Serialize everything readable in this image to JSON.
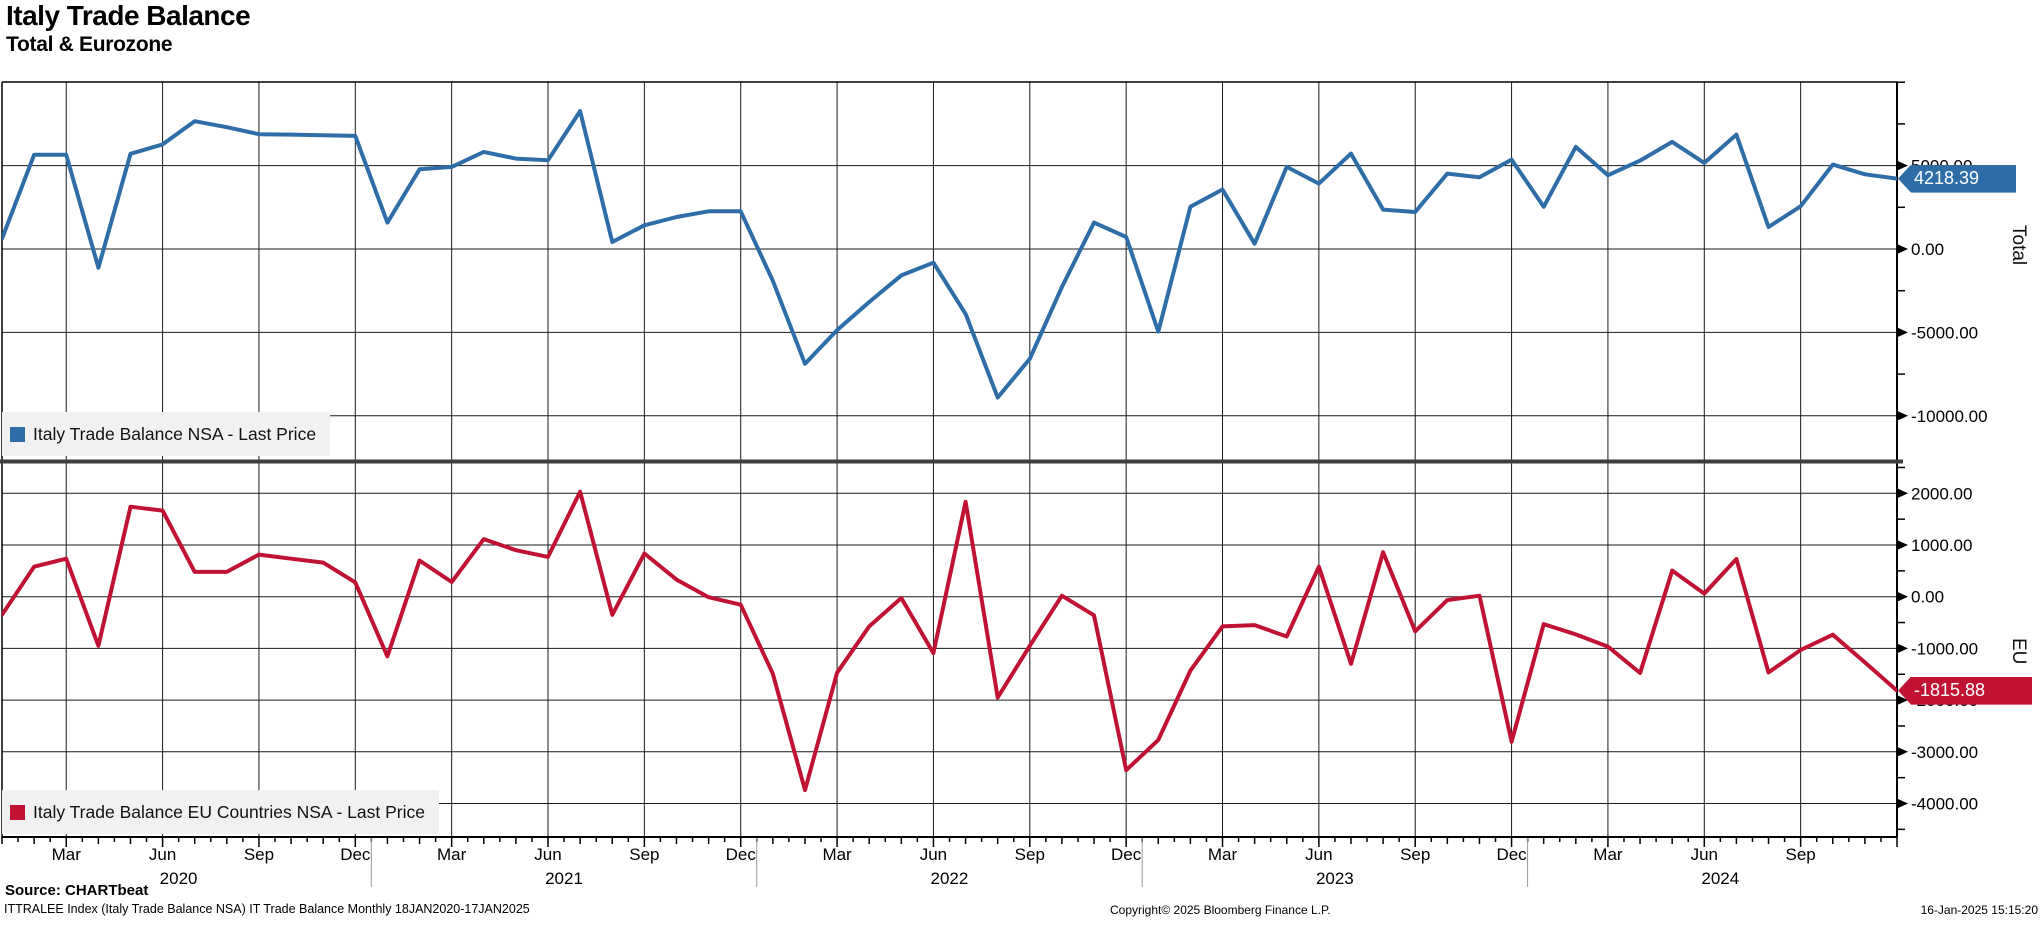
{
  "title": "Italy Trade Balance",
  "subtitle": "Total & Eurozone",
  "top_panel": {
    "legend": "Italy Trade Balance NSA - Last Price",
    "axis_title": "Total",
    "last_price_label": "4218.39",
    "color": "#2e6da8",
    "ticks": [
      {
        "label": "5000.00",
        "value": 5000
      },
      {
        "label": "0.00",
        "value": 0
      },
      {
        "label": "-5000.00",
        "value": -5000
      },
      {
        "label": "-10000.00",
        "value": -10000
      }
    ],
    "minor_tick_values": [
      10000,
      7500,
      2500,
      -2500,
      -7500
    ]
  },
  "bottom_panel": {
    "legend": "Italy Trade Balance EU Countries NSA - Last Price",
    "axis_title": "EU",
    "last_price_label": "-1815.88",
    "color": "#c01334",
    "ticks": [
      {
        "label": "2000.00",
        "value": 2000
      },
      {
        "label": "1000.00",
        "value": 1000
      },
      {
        "label": "0.00",
        "value": 0
      },
      {
        "label": "-1000.00",
        "value": -1000
      },
      {
        "label": "-2000.00",
        "value": -2000
      },
      {
        "label": "-3000.00",
        "value": -3000
      },
      {
        "label": "-4000.00",
        "value": -4000
      }
    ],
    "minor_tick_values": [
      2500,
      1500,
      500,
      -500,
      -1500,
      -2500,
      -3500,
      -4500
    ]
  },
  "x_axis": {
    "quarter_month_indices": [
      2,
      5,
      8,
      11
    ],
    "quarter_labels": [
      "Mar",
      "Jun",
      "Sep",
      "Dec"
    ],
    "years": [
      {
        "label": "2020",
        "jun_index": 5
      },
      {
        "label": "2021",
        "jun_index": 17
      },
      {
        "label": "2022",
        "jun_index": 29
      },
      {
        "label": "2023",
        "jun_index": 41
      },
      {
        "label": "2024",
        "jun_index": 53
      }
    ]
  },
  "footer": {
    "source": "Source: CHARTbeat",
    "description": "ITTRALEE Index (Italy Trade Balance NSA) IT Trade Balance  Monthly 18JAN2020-17JAN2025",
    "copyright": "Copyright© 2025 Bloomberg Finance L.P.",
    "datetime": "16-Jan-2025 15:15:20"
  },
  "chart_data": {
    "type": "line",
    "x": [
      "Jan 2020",
      "Feb 2020",
      "Mar 2020",
      "Apr 2020",
      "May 2020",
      "Jun 2020",
      "Jul 2020",
      "Aug 2020",
      "Sep 2020",
      "Oct 2020",
      "Nov 2020",
      "Dec 2020",
      "Jan 2021",
      "Feb 2021",
      "Mar 2021",
      "Apr 2021",
      "May 2021",
      "Jun 2021",
      "Jul 2021",
      "Aug 2021",
      "Sep 2021",
      "Oct 2021",
      "Nov 2021",
      "Dec 2021",
      "Jan 2022",
      "Feb 2022",
      "Mar 2022",
      "Apr 2022",
      "May 2022",
      "Jun 2022",
      "Jul 2022",
      "Aug 2022",
      "Sep 2022",
      "Oct 2022",
      "Nov 2022",
      "Dec 2022",
      "Jan 2023",
      "Feb 2023",
      "Mar 2023",
      "Apr 2023",
      "May 2023",
      "Jun 2023",
      "Jul 2023",
      "Aug 2023",
      "Sep 2023",
      "Oct 2023",
      "Nov 2023",
      "Dec 2023",
      "Jan 2024",
      "Feb 2024",
      "Mar 2024",
      "Apr 2024",
      "May 2024",
      "Jun 2024",
      "Jul 2024",
      "Aug 2024",
      "Sep 2024",
      "Oct 2024",
      "Nov 2024",
      "Dec 2024"
    ],
    "series": [
      {
        "name": "Italy Trade Balance NSA - Last Price",
        "panel": "top",
        "color": "#2e6da8",
        "last_value": 4218.39,
        "values": [
          620,
          5650,
          5650,
          -1120,
          5710,
          6270,
          7660,
          7300,
          6880,
          6860,
          6820,
          6780,
          1580,
          4780,
          4920,
          5820,
          5420,
          5320,
          8270,
          420,
          1420,
          1920,
          2260,
          2260,
          -1900,
          -6880,
          -4860,
          -3180,
          -1580,
          -820,
          -3890,
          -8900,
          -6580,
          -2280,
          1580,
          720,
          -4950,
          2530,
          3570,
          320,
          4920,
          3920,
          5720,
          2360,
          2220,
          4520,
          4300,
          5360,
          2530,
          6120,
          4420,
          5300,
          6420,
          5160,
          6860,
          1320,
          2560,
          5060,
          4480,
          4218.39
        ]
      },
      {
        "name": "Italy Trade Balance EU Countries NSA - Last Price",
        "panel": "bottom",
        "color": "#c01334",
        "last_value": -1815.88,
        "values": [
          -350,
          580,
          735,
          -950,
          1740,
          1665,
          480,
          480,
          815,
          735,
          660,
          277,
          -1155,
          700,
          285,
          1115,
          900,
          770,
          2030,
          -350,
          835,
          330,
          -10,
          -155,
          -1490,
          -3740,
          -1470,
          -575,
          -25,
          -1090,
          1835,
          -1950,
          -950,
          20,
          -360,
          -3355,
          -2770,
          -1430,
          -575,
          -550,
          -770,
          580,
          -1300,
          860,
          -670,
          -65,
          20,
          -2805,
          -530,
          -730,
          -965,
          -1475,
          505,
          60,
          730,
          -1465,
          -1030,
          -735,
          -1270,
          -1815.88
        ]
      }
    ],
    "top_ylim": [
      -12700,
      10050
    ],
    "bottom_ylim": [
      -4650,
      2590
    ],
    "x_range": "18JAN2020-17JAN2025",
    "grid": true,
    "legend_position": "inside-bottom-left"
  }
}
